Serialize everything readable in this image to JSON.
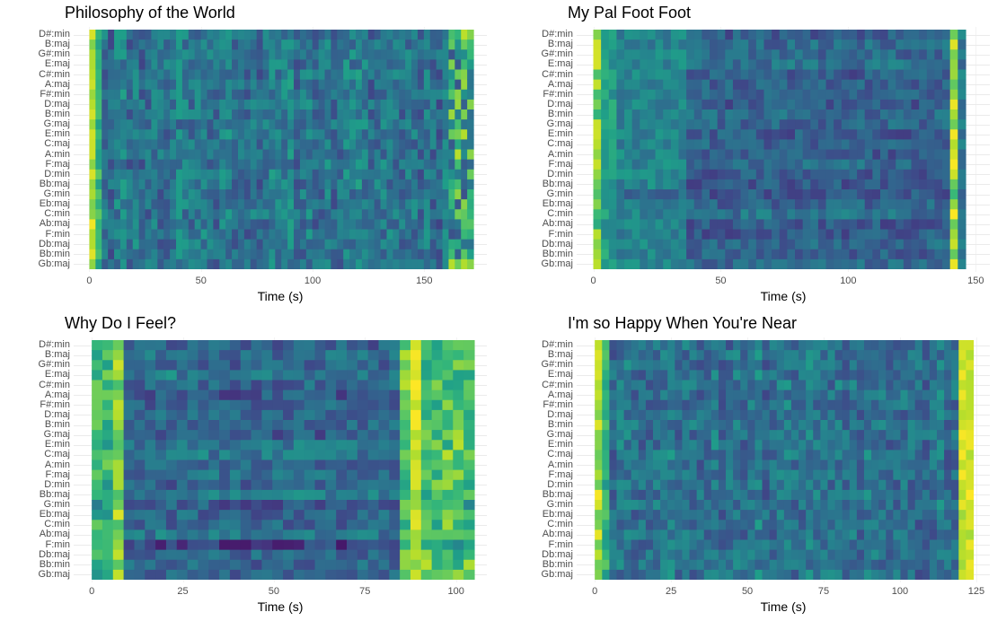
{
  "keys": [
    "D#:min",
    "B:maj",
    "G#:min",
    "E:maj",
    "C#:min",
    "A:maj",
    "F#:min",
    "D:maj",
    "B:min",
    "G:maj",
    "E:min",
    "C:maj",
    "A:min",
    "F:maj",
    "D:min",
    "Bb:maj",
    "G:min",
    "Eb:maj",
    "C:min",
    "Ab:maj",
    "F:min",
    "Db:maj",
    "Bb:min",
    "Gb:maj"
  ],
  "colors": {
    "viridis": [
      "#440154",
      "#482878",
      "#3e4a89",
      "#31688e",
      "#26828e",
      "#1f9e89",
      "#35b779",
      "#6dcd59",
      "#b4de2c",
      "#fde725"
    ]
  },
  "chart_data": [
    {
      "type": "heatmap",
      "title": "Philosophy of the World",
      "xlabel": "Time (s)",
      "xticks": [
        "0",
        "50",
        "100",
        "150"
      ],
      "xtick_values": [
        0,
        50,
        100,
        150
      ],
      "xlim": [
        -3,
        174
      ],
      "duration": 172,
      "n_cols": 62,
      "seed": 11,
      "profile": "dense-noisy"
    },
    {
      "type": "heatmap",
      "title": "My Pal Foot Foot",
      "xlabel": "Time (s)",
      "xticks": [
        "0",
        "50",
        "100",
        "150"
      ],
      "xtick_values": [
        0,
        50,
        100,
        150
      ],
      "xlim": [
        -3,
        152
      ],
      "duration": 146,
      "n_cols": 48,
      "seed": 23,
      "profile": "bright-edges"
    },
    {
      "type": "heatmap",
      "title": "Why Do I Feel?",
      "xlabel": "Time (s)",
      "xticks": [
        "0",
        "25",
        "50",
        "75",
        "100"
      ],
      "xtick_values": [
        0,
        25,
        50,
        75,
        100
      ],
      "xlim": [
        -2.5,
        106
      ],
      "duration": 105,
      "n_cols": 36,
      "seed": 37,
      "profile": "bright-end"
    },
    {
      "type": "heatmap",
      "title": "I'm so Happy When You're Near",
      "xlabel": "Time (s)",
      "xticks": [
        "0",
        "25",
        "50",
        "75",
        "100",
        "125"
      ],
      "xtick_values": [
        0,
        25,
        50,
        75,
        100,
        125
      ],
      "xlim": [
        -3,
        126.5
      ],
      "duration": 124,
      "n_cols": 52,
      "seed": 53,
      "profile": "bright-both"
    }
  ]
}
